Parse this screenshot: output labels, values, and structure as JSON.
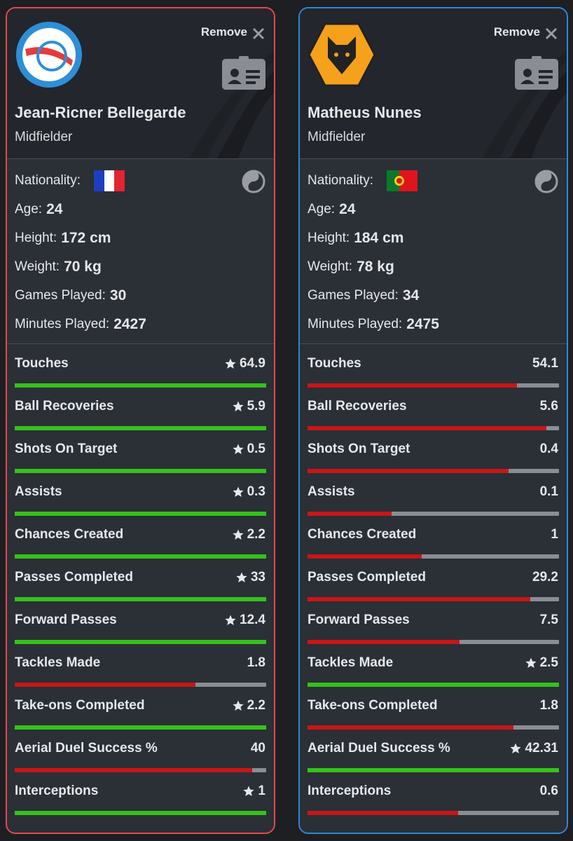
{
  "remove_label": "Remove",
  "info_labels": [
    "Nationality:",
    "Age:",
    "Height:",
    "Weight:",
    "Games Played:",
    "Minutes Played:"
  ],
  "stat_labels": [
    "Touches",
    "Ball Recoveries",
    "Shots On Target",
    "Assists",
    "Chances Created",
    "Passes Completed",
    "Forward Passes",
    "Tackles Made",
    "Take-ons Completed",
    "Aerial Duel Success %",
    "Interceptions"
  ],
  "players": [
    {
      "name": "Jean-Ricner Bellegarde",
      "position": "Midfielder",
      "border_color": "#e5484d",
      "info": [
        null,
        24,
        "172 cm",
        "70 kg",
        30,
        2427
      ],
      "stats": [
        64.9,
        5.9,
        0.5,
        0.3,
        2.2,
        33,
        12.4,
        1.8,
        2.2,
        40,
        1
      ]
    },
    {
      "name": "Matheus Nunes",
      "position": "Midfielder",
      "border_color": "#2f86d6",
      "info": [
        null,
        24,
        "184 cm",
        "78 kg",
        34,
        2475
      ],
      "stats": [
        54.1,
        5.6,
        0.4,
        0.1,
        1,
        29.2,
        7.5,
        2.5,
        1.8,
        42.31,
        0.6
      ]
    }
  ]
}
